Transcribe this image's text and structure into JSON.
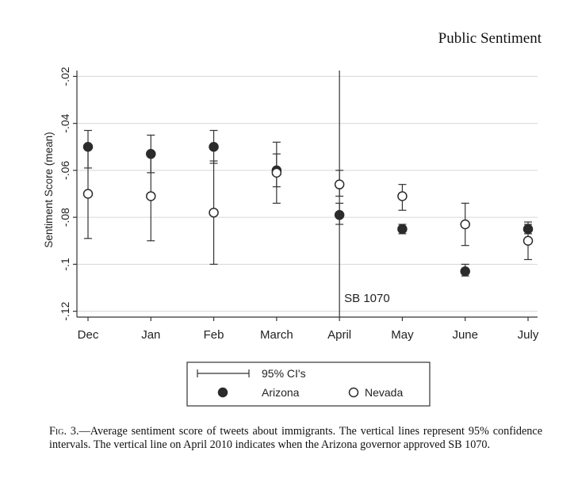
{
  "header": {
    "running_title": "Public Sentiment"
  },
  "caption": {
    "lead": "Fig. 3.",
    "text": "—Average sentiment score of tweets about immigrants. The vertical lines represent 95% confidence intervals. The vertical line on April 2010 indicates when the Arizona governor approved SB 1070."
  },
  "chart_data": {
    "type": "scatter",
    "ylabel": "Sentiment Score (mean)",
    "xlabel": "",
    "categories": [
      "Dec",
      "Jan",
      "Feb",
      "March",
      "April",
      "May",
      "June",
      "July"
    ],
    "y_ticks": [
      -0.02,
      -0.04,
      -0.06,
      -0.08,
      -0.1,
      -0.12
    ],
    "y_tick_labels": [
      "-.02",
      "-.04",
      "-.06",
      "-.08",
      "-.1",
      "-.12"
    ],
    "ylim": [
      -0.1225,
      -0.0175
    ],
    "grid": true,
    "series": [
      {
        "name": "Arizona",
        "marker": "filled-circle",
        "values": [
          -0.05,
          -0.053,
          -0.05,
          -0.06,
          -0.079,
          -0.085,
          -0.103,
          -0.085
        ],
        "ci_low": [
          -0.059,
          -0.061,
          -0.057,
          -0.067,
          -0.083,
          -0.087,
          -0.105,
          -0.087
        ],
        "ci_high": [
          -0.043,
          -0.045,
          -0.043,
          -0.053,
          -0.074,
          -0.083,
          -0.1,
          -0.083
        ]
      },
      {
        "name": "Nevada",
        "marker": "hollow-circle",
        "values": [
          -0.07,
          -0.071,
          -0.078,
          -0.061,
          -0.066,
          -0.071,
          -0.083,
          -0.09
        ],
        "ci_low": [
          -0.089,
          -0.09,
          -0.1,
          -0.074,
          -0.071,
          -0.077,
          -0.092,
          -0.098
        ],
        "ci_high": [
          -0.051,
          -0.052,
          -0.056,
          -0.048,
          -0.06,
          -0.066,
          -0.074,
          -0.082
        ]
      }
    ],
    "vline": {
      "category": "April",
      "label": "SB 1070"
    },
    "legend": {
      "placement": "bottom",
      "ci_label": "95% CI's",
      "items": [
        "Arizona",
        "Nevada"
      ]
    }
  }
}
